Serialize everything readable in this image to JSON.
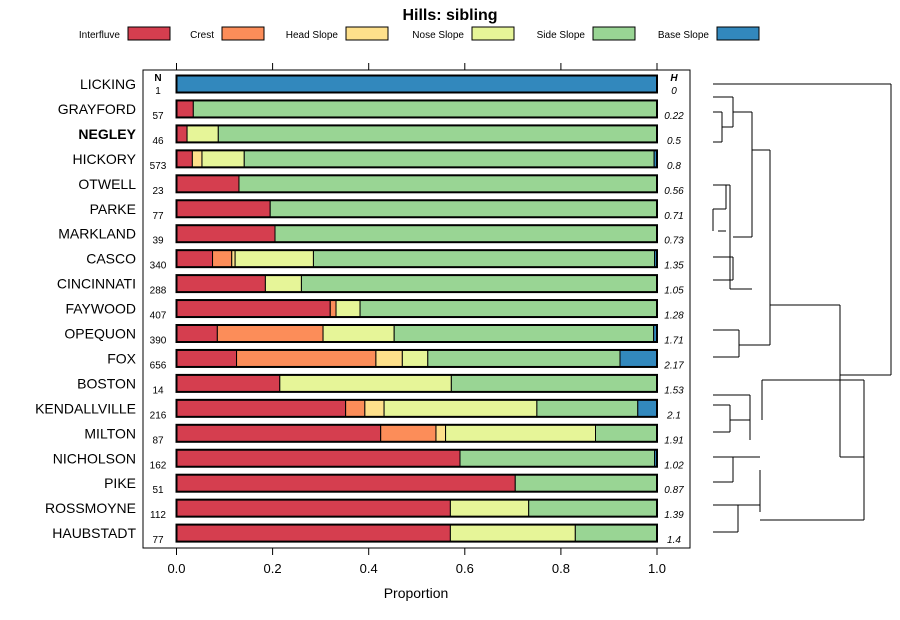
{
  "chart_data": {
    "type": "bar",
    "orientation": "horizontal-stacked",
    "title": "Hills: sibling",
    "xlabel": "Proportion",
    "xlim": [
      0,
      1
    ],
    "xticks": [
      "0.0",
      "0.2",
      "0.4",
      "0.6",
      "0.8",
      "1.0"
    ],
    "n_header": "N",
    "h_header": "H",
    "legend": [
      {
        "name": "Interfluve",
        "color": "#d53e4f"
      },
      {
        "name": "Crest",
        "color": "#fc8d59"
      },
      {
        "name": "Head Slope",
        "color": "#fee08b"
      },
      {
        "name": "Nose Slope",
        "color": "#e6f598"
      },
      {
        "name": "Side Slope",
        "color": "#99d594"
      },
      {
        "name": "Base Slope",
        "color": "#3288bd"
      }
    ],
    "categories": [
      "LICKING",
      "GRAYFORD",
      "NEGLEY",
      "HICKORY",
      "OTWELL",
      "PARKE",
      "MARKLAND",
      "CASCO",
      "CINCINNATI",
      "FAYWOOD",
      "OPEQUON",
      "FOX",
      "BOSTON",
      "KENDALLVILLE",
      "MILTON",
      "NICHOLSON",
      "PIKE",
      "ROSSMOYNE",
      "HAUBSTADT"
    ],
    "highlight": "NEGLEY",
    "n": [
      "1",
      "57",
      "46",
      "573",
      "23",
      "77",
      "39",
      "340",
      "288",
      "407",
      "390",
      "656",
      "14",
      "216",
      "87",
      "162",
      "51",
      "112",
      "77"
    ],
    "h": [
      "0",
      "0.22",
      "0.5",
      "0.8",
      "0.56",
      "0.71",
      "0.73",
      "1.35",
      "1.05",
      "1.28",
      "1.71",
      "2.17",
      "1.53",
      "2.1",
      "1.91",
      "1.02",
      "0.87",
      "1.39",
      "1.4"
    ],
    "series": [
      {
        "name": "Interfluve",
        "values": [
          0,
          0.035,
          0.022,
          0.033,
          0.13,
          0.195,
          0.205,
          0.075,
          0.185,
          0.32,
          0.085,
          0.125,
          0.215,
          0.352,
          0.425,
          0.59,
          0.705,
          0.57,
          0.57
        ]
      },
      {
        "name": "Crest",
        "values": [
          0,
          0,
          0,
          0,
          0,
          0,
          0,
          0.04,
          0,
          0.012,
          0.22,
          0.29,
          0,
          0.04,
          0.115,
          0,
          0,
          0,
          0
        ]
      },
      {
        "name": "Head Slope",
        "values": [
          0,
          0,
          0,
          0.02,
          0,
          0,
          0,
          0.007,
          0,
          0,
          0,
          0.055,
          0,
          0.04,
          0.02,
          0,
          0,
          0,
          0
        ]
      },
      {
        "name": "Nose Slope",
        "values": [
          0,
          0,
          0.065,
          0.088,
          0,
          0,
          0,
          0.163,
          0.075,
          0.05,
          0.148,
          0.053,
          0.357,
          0.318,
          0.312,
          0,
          0,
          0.163,
          0.26
        ]
      },
      {
        "name": "Side Slope",
        "values": [
          0,
          0.965,
          0.913,
          0.853,
          0.87,
          0.805,
          0.795,
          0.71,
          0.74,
          0.618,
          0.54,
          0.4,
          0.428,
          0.21,
          0.128,
          0.405,
          0.295,
          0.267,
          0.17
        ]
      },
      {
        "name": "Base Slope",
        "values": [
          1,
          0,
          0,
          0.006,
          0,
          0,
          0,
          0.005,
          0,
          0,
          0.007,
          0.077,
          0,
          0.04,
          0,
          0.005,
          0,
          0,
          0
        ]
      }
    ]
  }
}
